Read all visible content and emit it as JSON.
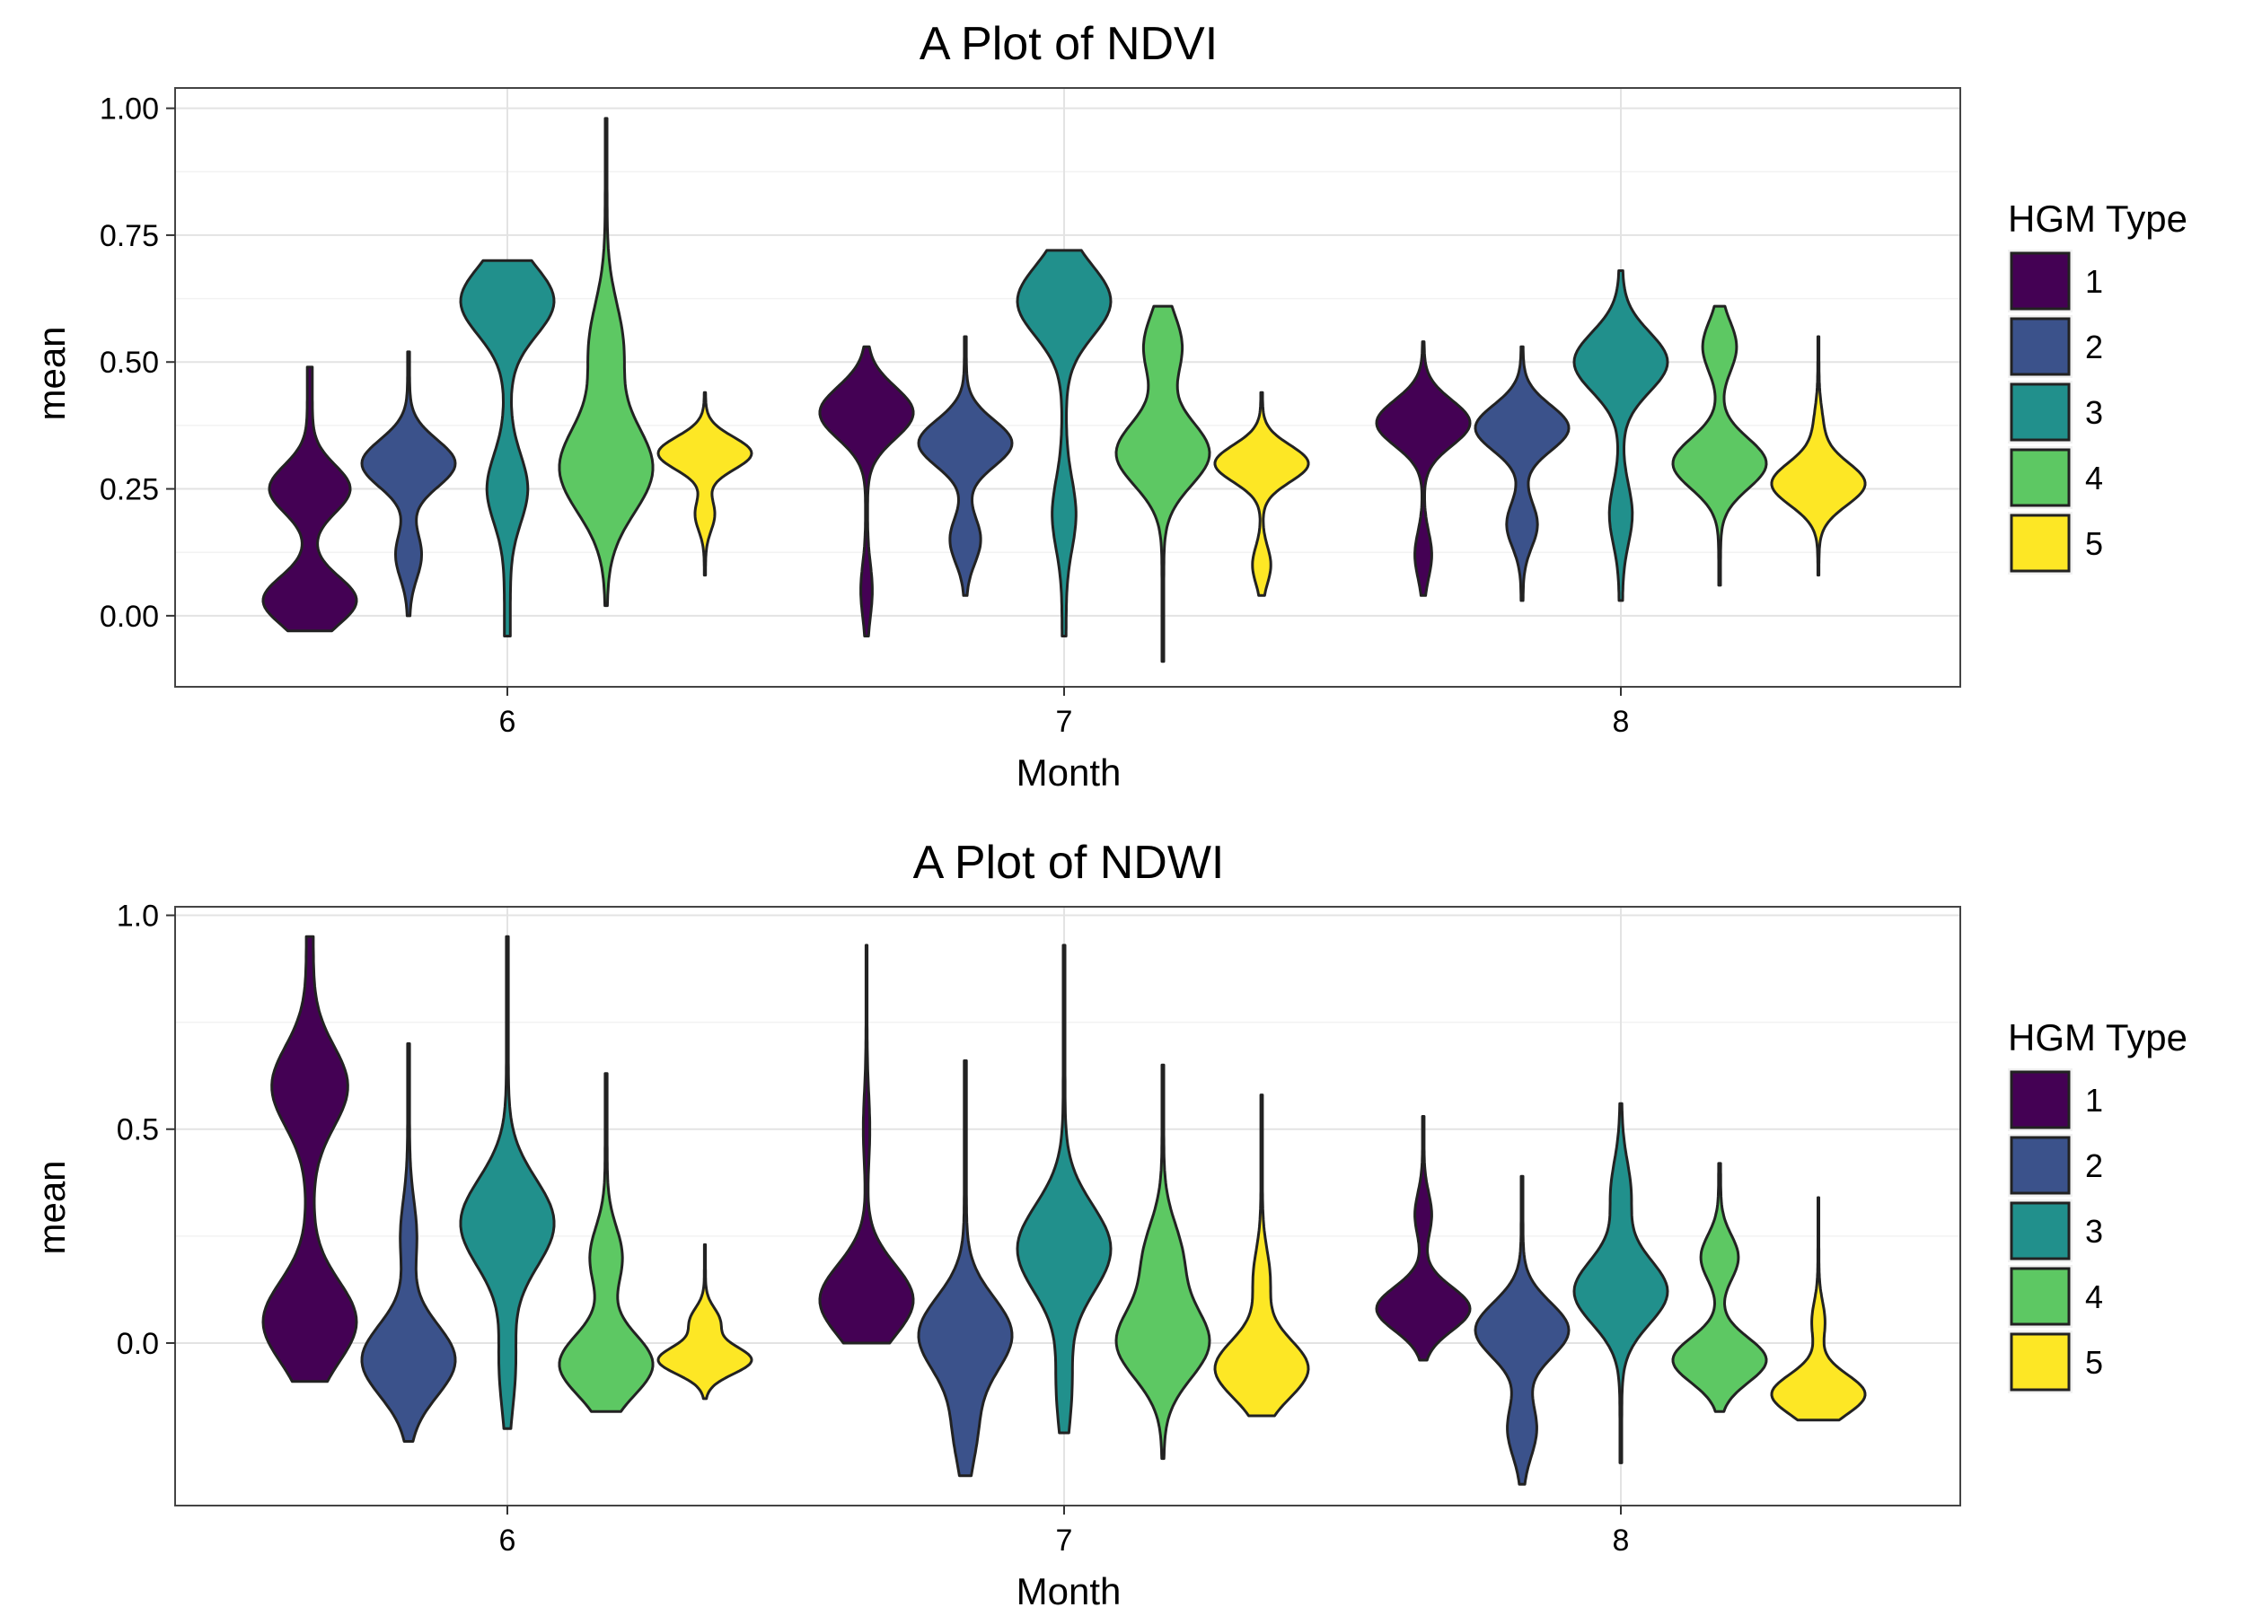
{
  "chart_data": [
    {
      "type": "violin",
      "title": "A Plot of NDVI",
      "xlabel": "Month",
      "ylabel": "mean",
      "x_categories": [
        "6",
        "7",
        "8"
      ],
      "ylim": [
        -0.14,
        1.04
      ],
      "yticks": [
        0.0,
        0.25,
        0.5,
        0.75,
        1.0
      ],
      "ytick_labels": [
        "0.00",
        "0.25",
        "0.50",
        "0.75",
        "1.00"
      ],
      "grid": true,
      "legend": {
        "title": "HGM Type",
        "position": "right",
        "entries": [
          "1",
          "2",
          "3",
          "4",
          "5"
        ]
      },
      "series_colors": [
        "#440154",
        "#3B528B",
        "#21908C",
        "#5DC863",
        "#FDE725"
      ],
      "groups": [
        {
          "month": "6",
          "hgm": "1",
          "min": -0.03,
          "max": 0.49,
          "modes": [
            [
              0.03,
              0.35
            ],
            [
              0.25,
              0.3
            ]
          ]
        },
        {
          "month": "6",
          "hgm": "2",
          "min": 0.0,
          "max": 0.52,
          "modes": [
            [
              0.3,
              0.95
            ],
            [
              0.12,
              0.25
            ]
          ]
        },
        {
          "month": "6",
          "hgm": "3",
          "min": -0.04,
          "max": 0.7,
          "modes": [
            [
              0.62,
              0.3
            ],
            [
              0.25,
              0.12
            ]
          ]
        },
        {
          "month": "6",
          "hgm": "4",
          "min": 0.02,
          "max": 0.98,
          "modes": [
            [
              0.29,
              1.0
            ],
            [
              0.53,
              0.35
            ]
          ]
        },
        {
          "month": "6",
          "hgm": "5",
          "min": 0.08,
          "max": 0.44,
          "modes": [
            [
              0.32,
              1.5
            ],
            [
              0.2,
              0.3
            ]
          ]
        },
        {
          "month": "7",
          "hgm": "1",
          "min": -0.04,
          "max": 0.53,
          "modes": [
            [
              0.4,
              0.95
            ],
            [
              0.05,
              0.1
            ]
          ]
        },
        {
          "month": "7",
          "hgm": "2",
          "min": 0.04,
          "max": 0.55,
          "modes": [
            [
              0.34,
              0.95
            ],
            [
              0.15,
              0.3
            ]
          ]
        },
        {
          "month": "7",
          "hgm": "3",
          "min": -0.04,
          "max": 0.72,
          "modes": [
            [
              0.62,
              0.45
            ],
            [
              0.2,
              0.1
            ]
          ]
        },
        {
          "month": "7",
          "hgm": "4",
          "min": -0.09,
          "max": 0.61,
          "modes": [
            [
              0.32,
              1.0
            ],
            [
              0.53,
              0.4
            ]
          ]
        },
        {
          "month": "7",
          "hgm": "5",
          "min": 0.04,
          "max": 0.44,
          "modes": [
            [
              0.3,
              1.1
            ],
            [
              0.1,
              0.2
            ]
          ]
        },
        {
          "month": "8",
          "hgm": "1",
          "min": 0.04,
          "max": 0.54,
          "modes": [
            [
              0.38,
              1.2
            ],
            [
              0.12,
              0.2
            ]
          ]
        },
        {
          "month": "8",
          "hgm": "2",
          "min": 0.03,
          "max": 0.53,
          "modes": [
            [
              0.37,
              0.95
            ],
            [
              0.18,
              0.3
            ]
          ]
        },
        {
          "month": "8",
          "hgm": "3",
          "min": 0.03,
          "max": 0.68,
          "modes": [
            [
              0.5,
              0.55
            ],
            [
              0.2,
              0.12
            ]
          ]
        },
        {
          "month": "8",
          "hgm": "4",
          "min": 0.06,
          "max": 0.61,
          "modes": [
            [
              0.3,
              1.0
            ],
            [
              0.53,
              0.35
            ]
          ]
        },
        {
          "month": "8",
          "hgm": "5",
          "min": 0.08,
          "max": 0.55,
          "modes": [
            [
              0.26,
              1.7
            ],
            [
              0.37,
              0.15
            ]
          ]
        }
      ]
    },
    {
      "type": "violin",
      "title": "A Plot of NDWI",
      "xlabel": "Month",
      "ylabel": "mean",
      "x_categories": [
        "6",
        "7",
        "8"
      ],
      "ylim": [
        -0.38,
        1.02
      ],
      "yticks": [
        0.0,
        0.5,
        1.0
      ],
      "ytick_labels": [
        "0.0",
        "0.5",
        "1.0"
      ],
      "grid": true,
      "legend": {
        "title": "HGM Type",
        "position": "right",
        "entries": [
          "1",
          "2",
          "3",
          "4",
          "5"
        ]
      },
      "series_colors": [
        "#440154",
        "#3B528B",
        "#21908C",
        "#5DC863",
        "#FDE725"
      ],
      "groups": [
        {
          "month": "6",
          "hgm": "1",
          "min": -0.09,
          "max": 0.95,
          "modes": [
            [
              0.05,
              0.25
            ],
            [
              0.6,
              0.2
            ]
          ]
        },
        {
          "month": "6",
          "hgm": "2",
          "min": -0.23,
          "max": 0.7,
          "modes": [
            [
              -0.04,
              0.95
            ],
            [
              0.25,
              0.15
            ]
          ]
        },
        {
          "month": "6",
          "hgm": "3",
          "min": -0.2,
          "max": 0.95,
          "modes": [
            [
              0.28,
              0.95
            ],
            [
              -0.05,
              0.15
            ]
          ]
        },
        {
          "month": "6",
          "hgm": "4",
          "min": -0.16,
          "max": 0.63,
          "modes": [
            [
              -0.05,
              0.9
            ],
            [
              0.2,
              0.3
            ]
          ]
        },
        {
          "month": "6",
          "hgm": "5",
          "min": -0.13,
          "max": 0.23,
          "modes": [
            [
              -0.04,
              1.6
            ],
            [
              0.05,
              0.5
            ]
          ]
        },
        {
          "month": "7",
          "hgm": "1",
          "min": 0.0,
          "max": 0.93,
          "modes": [
            [
              0.1,
              1.7
            ],
            [
              0.5,
              0.1
            ]
          ]
        },
        {
          "month": "7",
          "hgm": "2",
          "min": -0.31,
          "max": 0.66,
          "modes": [
            [
              0.02,
              0.85
            ],
            [
              -0.2,
              0.2
            ]
          ]
        },
        {
          "month": "7",
          "hgm": "3",
          "min": -0.21,
          "max": 0.93,
          "modes": [
            [
              0.22,
              1.0
            ],
            [
              -0.1,
              0.15
            ]
          ]
        },
        {
          "month": "7",
          "hgm": "4",
          "min": -0.27,
          "max": 0.65,
          "modes": [
            [
              0.0,
              1.0
            ],
            [
              0.2,
              0.4
            ]
          ]
        },
        {
          "month": "7",
          "hgm": "5",
          "min": -0.17,
          "max": 0.58,
          "modes": [
            [
              -0.06,
              1.2
            ],
            [
              0.15,
              0.2
            ]
          ]
        },
        {
          "month": "8",
          "hgm": "1",
          "min": -0.04,
          "max": 0.53,
          "modes": [
            [
              0.08,
              1.2
            ],
            [
              0.3,
              0.2
            ]
          ]
        },
        {
          "month": "8",
          "hgm": "2",
          "min": -0.33,
          "max": 0.39,
          "modes": [
            [
              0.03,
              1.0
            ],
            [
              -0.2,
              0.3
            ]
          ]
        },
        {
          "month": "8",
          "hgm": "3",
          "min": -0.28,
          "max": 0.56,
          "modes": [
            [
              0.12,
              1.0
            ],
            [
              0.35,
              0.2
            ]
          ]
        },
        {
          "month": "8",
          "hgm": "4",
          "min": -0.16,
          "max": 0.42,
          "modes": [
            [
              -0.04,
              0.9
            ],
            [
              0.2,
              0.35
            ]
          ]
        },
        {
          "month": "8",
          "hgm": "5",
          "min": -0.18,
          "max": 0.34,
          "modes": [
            [
              -0.12,
              1.9
            ],
            [
              0.05,
              0.25
            ]
          ]
        }
      ]
    }
  ]
}
